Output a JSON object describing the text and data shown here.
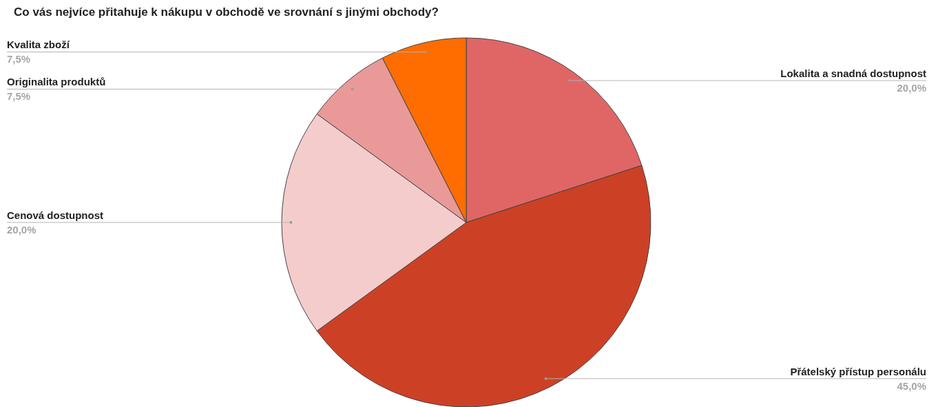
{
  "chart_data": {
    "type": "pie",
    "title": "Co vás nejvíce přitahuje k nákupu v obchodě ve srovnání s jinými obchody?",
    "categories": [
      "Lokalita a snadná dostupnost",
      "Přátelský přístup personálu",
      "Cenová dostupnost",
      "Originalita produktů",
      "Kvalita zboží"
    ],
    "values": [
      20,
      45,
      20,
      7.5,
      7.5
    ],
    "colors": [
      "#e06666",
      "#cc4125",
      "#f4cccc",
      "#ea9999",
      "#ff6d01"
    ],
    "value_labels": [
      "20,0%",
      "45,0%",
      "20,0%",
      "7,5%",
      "7,5%"
    ]
  }
}
